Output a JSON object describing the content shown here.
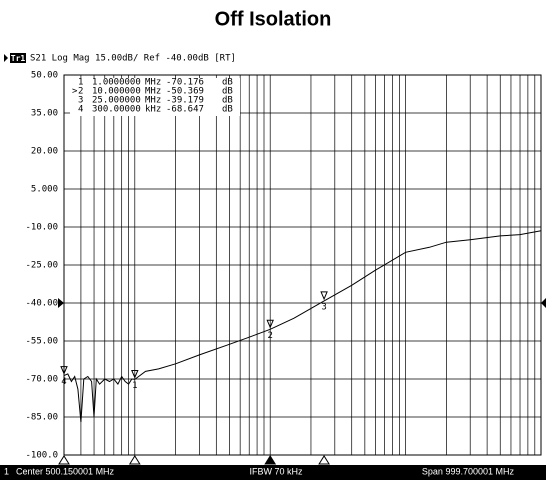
{
  "chart_data": {
    "type": "line",
    "title": "Off Isolation",
    "trace_badge": "Tr1",
    "header": "S21 Log Mag 15.00dB/ Ref -40.00dB [RT]",
    "footer": {
      "channel": "1",
      "center": "Center 500.150001 MHz",
      "ifbw": "IFBW 70 kHz",
      "span": "Span 999.700001 MHz"
    },
    "log_x": true,
    "grid": true,
    "xlim": [
      0.3,
      1000
    ],
    "ylim": [
      -100,
      50
    ],
    "xticks": [
      0.4,
      0.5,
      0.6,
      0.7,
      0.8,
      0.9,
      1,
      2,
      3,
      4,
      5,
      6,
      7,
      8,
      9,
      10,
      20,
      30,
      40,
      50,
      60,
      70,
      80,
      90,
      100,
      200,
      300,
      400,
      500,
      600,
      700,
      800,
      900
    ],
    "yticks": [
      {
        "value": 50,
        "label": "50.00"
      },
      {
        "value": 35,
        "label": "35.00"
      },
      {
        "value": 20,
        "label": "20.00"
      },
      {
        "value": 5,
        "label": "5.000"
      },
      {
        "value": -10,
        "label": "-10.00"
      },
      {
        "value": -25,
        "label": "-25.00"
      },
      {
        "value": -40,
        "label": "-40.00"
      },
      {
        "value": -55,
        "label": "-55.00"
      },
      {
        "value": -70,
        "label": "-70.00"
      },
      {
        "value": -85,
        "label": "-85.00"
      },
      {
        "value": -100,
        "label": "-100.0"
      }
    ],
    "reference": -40,
    "series": [
      {
        "name": "S21",
        "color": "#000000",
        "x": [
          0.3,
          0.32,
          0.34,
          0.36,
          0.38,
          0.4,
          0.42,
          0.45,
          0.48,
          0.5,
          0.52,
          0.55,
          0.6,
          0.65,
          0.7,
          0.75,
          0.8,
          0.85,
          0.9,
          0.95,
          1,
          1.2,
          1.5,
          2,
          3,
          5,
          7,
          10,
          15,
          25,
          40,
          60,
          100,
          150,
          200,
          300,
          500,
          700,
          1000
        ],
        "values": [
          -68.647,
          -68,
          -71,
          -69,
          -74,
          -87,
          -70,
          -69,
          -71,
          -85,
          -70,
          -72,
          -70,
          -71,
          -70,
          -72,
          -69,
          -71,
          -72,
          -70,
          -70.176,
          -67,
          -66,
          -64,
          -60.5,
          -56.3,
          -53.5,
          -50.369,
          -46,
          -39.179,
          -33,
          -27,
          -20,
          -18,
          -16,
          -15,
          -13.5,
          -13,
          -11.5
        ]
      }
    ],
    "active_symbol": ">",
    "active": 1,
    "markers": [
      {
        "num": "1",
        "freq": "1.0000000",
        "unit": "MHz",
        "value": "-70.176",
        "value_unit": "dB",
        "x": 1,
        "y": -70.176
      },
      {
        "num": "2",
        "freq": "10.000000",
        "unit": "MHz",
        "value": "-50.369",
        "value_unit": "dB",
        "x": 10,
        "y": -50.369
      },
      {
        "num": "3",
        "freq": "25.000000",
        "unit": "MHz",
        "value": "-39.179",
        "value_unit": "dB",
        "x": 25,
        "y": -39.179
      },
      {
        "num": "4",
        "freq": "300.00000",
        "unit": "kHz",
        "value": "-68.647",
        "value_unit": "dB",
        "x": 0.3,
        "y": -68.647
      }
    ]
  }
}
